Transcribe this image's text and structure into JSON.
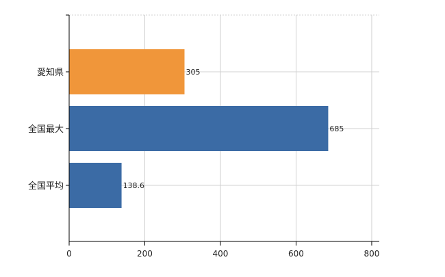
{
  "chart_data": {
    "type": "bar",
    "orientation": "horizontal",
    "title": "",
    "xlabel": "",
    "ylabel": "",
    "categories": [
      "愛知県",
      "全国最大",
      "全国平均"
    ],
    "values": [
      305,
      685,
      138.6
    ],
    "value_labels": [
      "305",
      "685",
      "138.6"
    ],
    "bar_colors": [
      "#F0963A",
      "#3B6BA5",
      "#3B6BA5"
    ],
    "xlim": [
      0,
      820
    ],
    "xticks": [
      0,
      200,
      400,
      600,
      800
    ],
    "xtick_labels": [
      "0",
      "200",
      "400",
      "600",
      "800"
    ],
    "grid": true,
    "grid_color": "#D0D0D0",
    "legend": false
  }
}
